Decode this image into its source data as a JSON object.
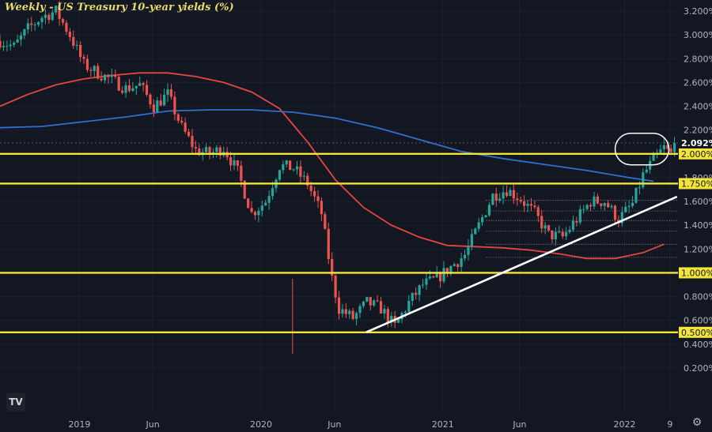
{
  "title": "Weekly - US Treasury 10-year yields (%)",
  "logo_text": "TV",
  "icons": {
    "settings": "gear-icon",
    "logo": "tradingview-logo-icon"
  },
  "colors": {
    "background": "#131722",
    "grid": "#1c2030",
    "up": "#26a69a",
    "down": "#ef5350",
    "ma_red": "#e2463f",
    "ma_blue": "#2f6fd1",
    "level": "#f2e43a",
    "trendline": "#ffffff",
    "axis_text": "#b2b5be"
  },
  "chart_data": {
    "type": "candlestick",
    "title": "Weekly - US Treasury 10-year yields (%)",
    "x_tick_labels": [
      "2019",
      "Jun",
      "2020",
      "Jun",
      "2021",
      "Jun",
      "2022",
      "9"
    ],
    "y_tick_labels": [
      "0.200%",
      "0.400%",
      "0.600%",
      "0.800%",
      "1.000%",
      "1.200%",
      "1.400%",
      "1.600%",
      "1.800%",
      "2.000%",
      "2.200%",
      "2.400%",
      "2.600%",
      "2.800%",
      "3.000%",
      "3.200%"
    ],
    "ylim": [
      0.06,
      3.26
    ],
    "xlim": [
      "2018-08-01",
      "2022-04-20"
    ],
    "grid": true,
    "last_price": "2.092%",
    "horizontal_levels": [
      {
        "value": 2.0,
        "label": "2.000%"
      },
      {
        "value": 1.75,
        "label": "1.750%"
      },
      {
        "value": 1.0,
        "label": "1.000%"
      },
      {
        "value": 0.5,
        "label": "0.500%"
      }
    ],
    "dotted_levels": [
      1.61,
      1.52,
      1.44,
      1.35,
      1.24,
      1.13
    ],
    "trendline": {
      "start": [
        "2020-08-03",
        0.5
      ],
      "end": [
        "2022-04-18",
        1.64
      ]
    },
    "highlight": {
      "center": [
        "2022-02-07",
        2.04
      ]
    },
    "price_path": [
      [
        "2018-08-01",
        2.95
      ],
      [
        "2018-08-29",
        2.9
      ],
      [
        "2018-09-26",
        3.05
      ],
      [
        "2018-10-24",
        3.15
      ],
      [
        "2018-11-21",
        3.2
      ],
      [
        "2018-12-19",
        3.0
      ],
      [
        "2019-01-16",
        2.75
      ],
      [
        "2019-02-13",
        2.68
      ],
      [
        "2019-03-13",
        2.62
      ],
      [
        "2019-04-10",
        2.55
      ],
      [
        "2019-05-08",
        2.58
      ],
      [
        "2019-06-05",
        2.4
      ],
      [
        "2019-07-03",
        2.5
      ],
      [
        "2019-07-31",
        2.22
      ],
      [
        "2019-08-28",
        2.03
      ],
      [
        "2019-09-25",
        2.0
      ],
      [
        "2019-10-23",
        2.05
      ],
      [
        "2019-11-20",
        1.85
      ],
      [
        "2019-12-18",
        1.5
      ],
      [
        "2020-01-15",
        1.6
      ],
      [
        "2020-02-12",
        1.9
      ],
      [
        "2020-03-11",
        1.88
      ],
      [
        "2020-04-08",
        1.75
      ],
      [
        "2020-05-06",
        1.5
      ],
      [
        "2020-05-27",
        0.95
      ],
      [
        "2020-06-10",
        0.7
      ],
      [
        "2020-07-08",
        0.62
      ],
      [
        "2020-08-05",
        0.75
      ],
      [
        "2020-09-02",
        0.7
      ],
      [
        "2020-09-30",
        0.55
      ],
      [
        "2020-10-28",
        0.75
      ],
      [
        "2020-11-25",
        0.9
      ],
      [
        "2020-12-23",
        0.95
      ],
      [
        "2021-01-20",
        1.05
      ],
      [
        "2021-02-17",
        1.15
      ],
      [
        "2021-03-17",
        1.4
      ],
      [
        "2021-04-14",
        1.65
      ],
      [
        "2021-05-12",
        1.7
      ],
      [
        "2021-06-09",
        1.62
      ],
      [
        "2021-07-07",
        1.5
      ],
      [
        "2021-08-04",
        1.32
      ],
      [
        "2021-09-01",
        1.3
      ],
      [
        "2021-09-29",
        1.45
      ],
      [
        "2021-10-27",
        1.6
      ],
      [
        "2021-11-24",
        1.6
      ],
      [
        "2021-12-22",
        1.45
      ],
      [
        "2022-01-19",
        1.58
      ],
      [
        "2022-02-09",
        1.82
      ],
      [
        "2022-03-02",
        1.95
      ],
      [
        "2022-03-23",
        2.05
      ],
      [
        "2022-04-06",
        2.0
      ],
      [
        "2022-04-13",
        2.09
      ]
    ],
    "series": [
      {
        "name": "",
        "type": "line",
        "color": "#e2463f",
        "points": [
          [
            "2018-08-01",
            2.4
          ],
          [
            "2018-09-26",
            2.5
          ],
          [
            "2018-11-21",
            2.58
          ],
          [
            "2019-01-16",
            2.63
          ],
          [
            "2019-03-13",
            2.66
          ],
          [
            "2019-05-08",
            2.68
          ],
          [
            "2019-07-03",
            2.68
          ],
          [
            "2019-08-28",
            2.65
          ],
          [
            "2019-10-23",
            2.6
          ],
          [
            "2019-12-18",
            2.52
          ],
          [
            "2020-02-12",
            2.38
          ],
          [
            "2020-04-08",
            2.1
          ],
          [
            "2020-06-03",
            1.78
          ],
          [
            "2020-07-29",
            1.55
          ],
          [
            "2020-09-23",
            1.4
          ],
          [
            "2020-11-18",
            1.3
          ],
          [
            "2021-01-13",
            1.23
          ],
          [
            "2021-03-10",
            1.22
          ],
          [
            "2021-05-05",
            1.21
          ],
          [
            "2021-06-30",
            1.19
          ],
          [
            "2021-08-25",
            1.16
          ],
          [
            "2021-10-20",
            1.12
          ],
          [
            "2021-12-15",
            1.12
          ],
          [
            "2022-02-09",
            1.17
          ],
          [
            "2022-03-23",
            1.24
          ]
        ]
      },
      {
        "name": "",
        "type": "line",
        "color": "#2f6fd1",
        "points": [
          [
            "2018-08-01",
            2.22
          ],
          [
            "2018-10-24",
            2.23
          ],
          [
            "2019-01-16",
            2.27
          ],
          [
            "2019-04-10",
            2.31
          ],
          [
            "2019-07-03",
            2.36
          ],
          [
            "2019-09-25",
            2.37
          ],
          [
            "2019-12-18",
            2.37
          ],
          [
            "2020-03-11",
            2.35
          ],
          [
            "2020-06-03",
            2.3
          ],
          [
            "2020-08-26",
            2.22
          ],
          [
            "2020-11-18",
            2.12
          ],
          [
            "2021-02-10",
            2.02
          ],
          [
            "2021-05-05",
            1.96
          ],
          [
            "2021-07-28",
            1.91
          ],
          [
            "2021-10-20",
            1.86
          ],
          [
            "2022-01-12",
            1.8
          ],
          [
            "2022-03-02",
            1.77
          ]
        ]
      }
    ]
  }
}
